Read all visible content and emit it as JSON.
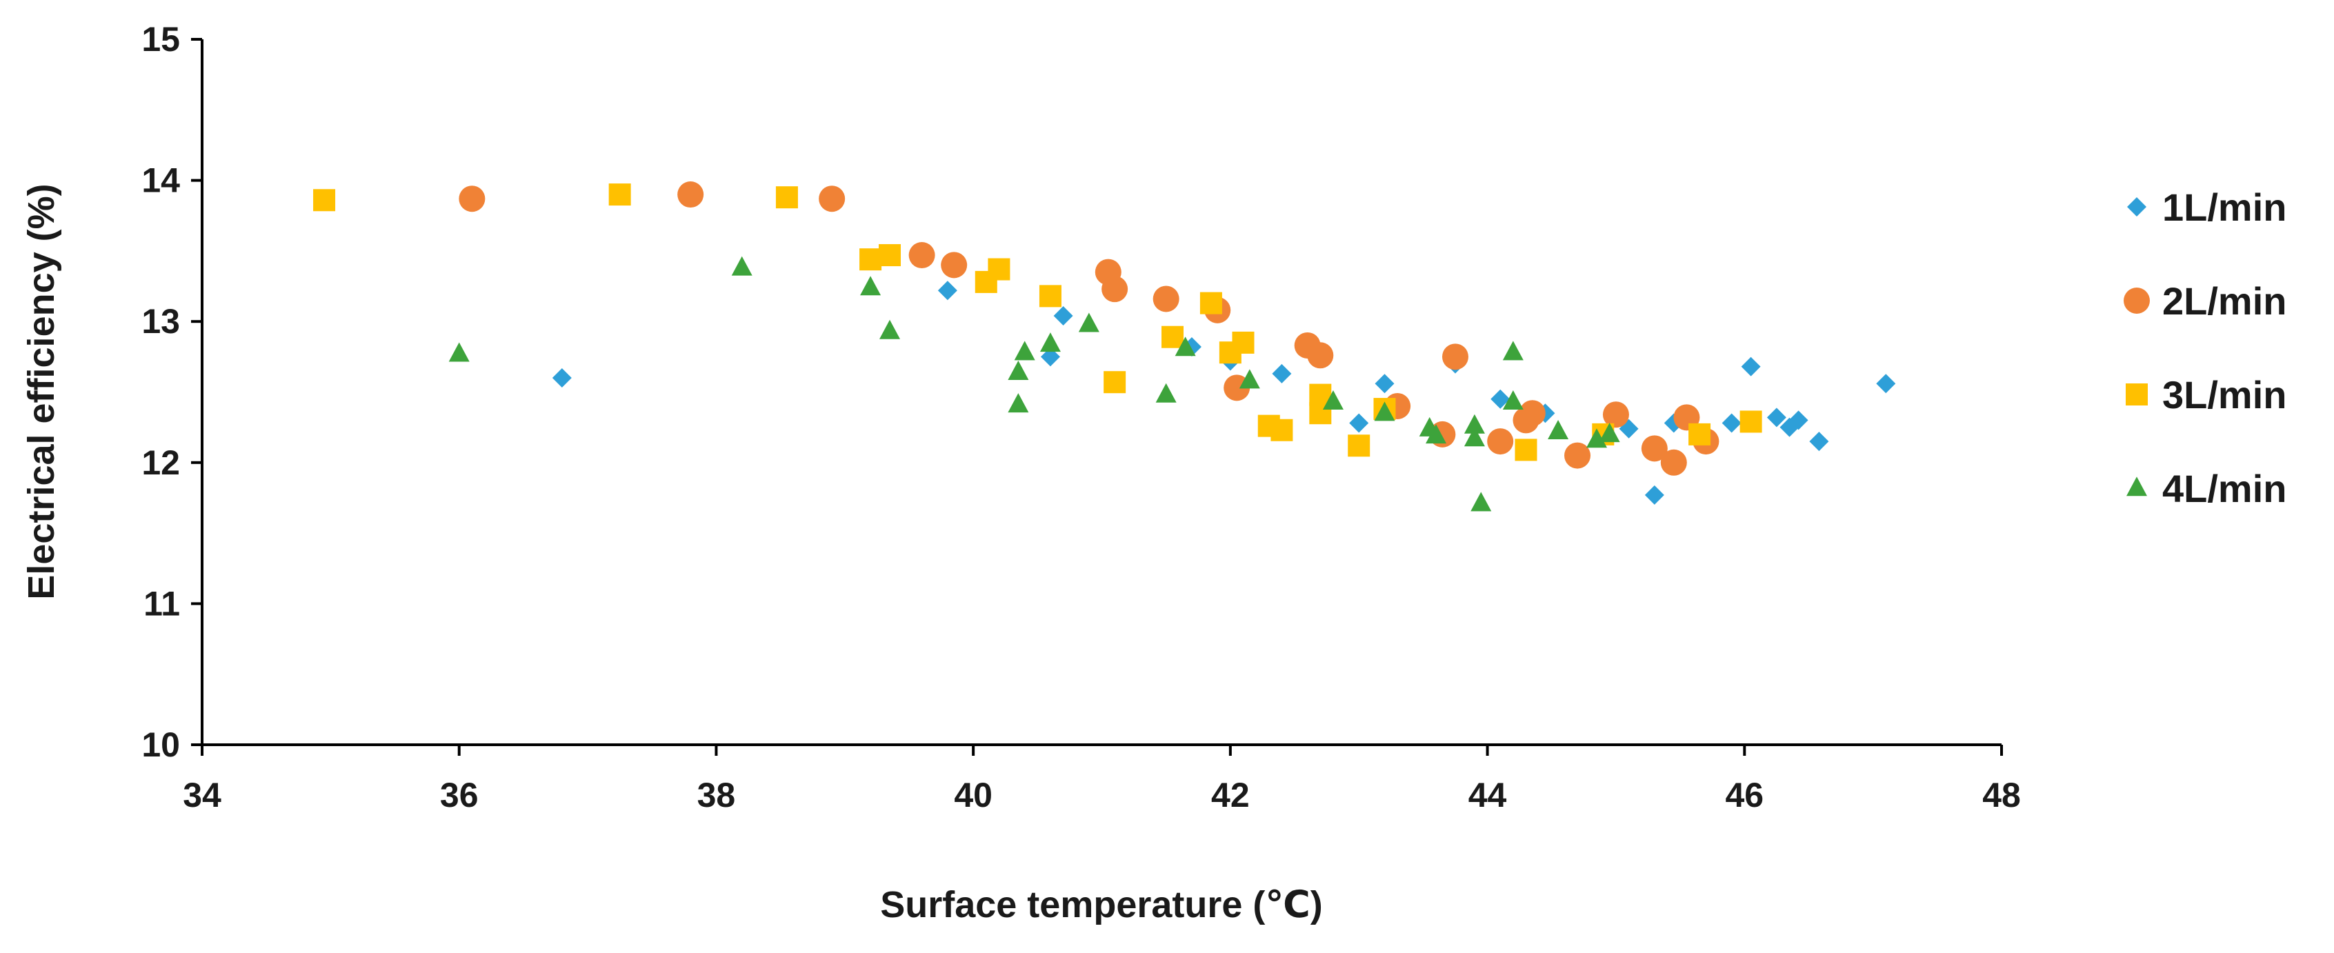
{
  "chart_data": {
    "type": "scatter",
    "title": "",
    "xlabel": "Surface temperature (℃)",
    "ylabel": "Electrical efficiency (%)",
    "xlim": [
      34,
      48
    ],
    "ylim": [
      10,
      15
    ],
    "xticks": [
      34,
      36,
      38,
      40,
      42,
      44,
      46,
      48
    ],
    "yticks": [
      10,
      11,
      12,
      13,
      14,
      15
    ],
    "grid": false,
    "legend_position": "right",
    "series": [
      {
        "name": "1L/min",
        "marker": "diamond",
        "color": "#2E9FD8",
        "points": [
          [
            36.8,
            12.6
          ],
          [
            39.8,
            13.22
          ],
          [
            40.6,
            12.75
          ],
          [
            40.7,
            13.04
          ],
          [
            41.7,
            12.82
          ],
          [
            42.0,
            12.72
          ],
          [
            42.4,
            12.63
          ],
          [
            43.0,
            12.28
          ],
          [
            43.2,
            12.56
          ],
          [
            43.75,
            12.7
          ],
          [
            44.1,
            12.45
          ],
          [
            44.45,
            12.35
          ],
          [
            44.9,
            12.2
          ],
          [
            45.1,
            12.24
          ],
          [
            45.3,
            11.77
          ],
          [
            45.45,
            12.28
          ],
          [
            45.9,
            12.28
          ],
          [
            46.05,
            12.68
          ],
          [
            46.25,
            12.32
          ],
          [
            46.35,
            12.25
          ],
          [
            46.42,
            12.3
          ],
          [
            46.58,
            12.15
          ],
          [
            47.1,
            12.56
          ]
        ]
      },
      {
        "name": "2L/min",
        "marker": "circle",
        "color": "#F08236",
        "points": [
          [
            36.1,
            13.87
          ],
          [
            37.8,
            13.9
          ],
          [
            38.9,
            13.87
          ],
          [
            39.6,
            13.47
          ],
          [
            39.85,
            13.4
          ],
          [
            41.05,
            13.35
          ],
          [
            41.1,
            13.23
          ],
          [
            41.5,
            13.16
          ],
          [
            41.9,
            13.08
          ],
          [
            42.05,
            12.53
          ],
          [
            42.6,
            12.83
          ],
          [
            42.7,
            12.76
          ],
          [
            43.3,
            12.4
          ],
          [
            43.65,
            12.2
          ],
          [
            43.75,
            12.75
          ],
          [
            44.1,
            12.15
          ],
          [
            44.3,
            12.3
          ],
          [
            44.35,
            12.35
          ],
          [
            44.7,
            12.05
          ],
          [
            45.0,
            12.34
          ],
          [
            45.3,
            12.1
          ],
          [
            45.45,
            12.0
          ],
          [
            45.55,
            12.32
          ],
          [
            45.7,
            12.15
          ]
        ]
      },
      {
        "name": "3L/min",
        "marker": "square",
        "color": "#FFC000",
        "points": [
          [
            34.95,
            13.86
          ],
          [
            37.25,
            13.9
          ],
          [
            38.55,
            13.88
          ],
          [
            39.2,
            13.44
          ],
          [
            39.35,
            13.47
          ],
          [
            40.1,
            13.28
          ],
          [
            40.2,
            13.37
          ],
          [
            40.6,
            13.18
          ],
          [
            41.1,
            12.57
          ],
          [
            41.55,
            12.89
          ],
          [
            41.85,
            13.13
          ],
          [
            42.0,
            12.78
          ],
          [
            42.1,
            12.85
          ],
          [
            42.3,
            12.26
          ],
          [
            42.4,
            12.23
          ],
          [
            42.7,
            12.48
          ],
          [
            42.7,
            12.35
          ],
          [
            43.0,
            12.12
          ],
          [
            43.2,
            12.38
          ],
          [
            44.3,
            12.09
          ],
          [
            44.9,
            12.2
          ],
          [
            45.65,
            12.2
          ],
          [
            46.05,
            12.29
          ]
        ]
      },
      {
        "name": "4L/min",
        "marker": "triangle",
        "color": "#3DA33B",
        "points": [
          [
            36.0,
            12.77
          ],
          [
            38.2,
            13.38
          ],
          [
            39.2,
            13.24
          ],
          [
            39.35,
            12.93
          ],
          [
            40.35,
            12.64
          ],
          [
            40.4,
            12.78
          ],
          [
            40.35,
            12.41
          ],
          [
            40.6,
            12.84
          ],
          [
            40.9,
            12.98
          ],
          [
            41.5,
            12.48
          ],
          [
            41.65,
            12.81
          ],
          [
            42.15,
            12.58
          ],
          [
            42.8,
            12.43
          ],
          [
            43.2,
            12.35
          ],
          [
            43.55,
            12.24
          ],
          [
            43.6,
            12.19
          ],
          [
            43.9,
            12.26
          ],
          [
            43.9,
            12.17
          ],
          [
            43.95,
            11.71
          ],
          [
            44.2,
            12.78
          ],
          [
            44.2,
            12.43
          ],
          [
            44.55,
            12.22
          ],
          [
            44.85,
            12.16
          ],
          [
            44.95,
            12.2
          ]
        ]
      }
    ]
  }
}
